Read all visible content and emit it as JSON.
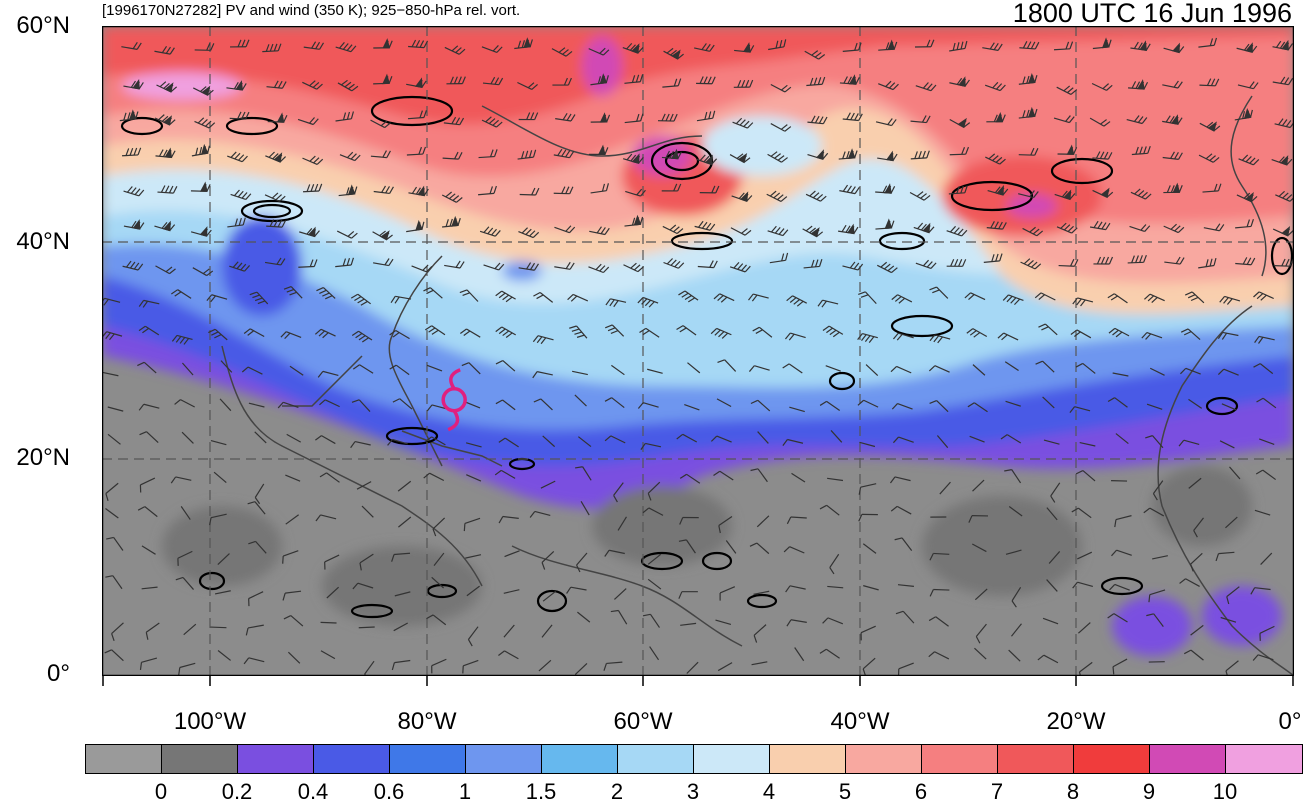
{
  "title": {
    "left": "[1996170N27282] PV and wind (350 K); 925−850-hPa rel. vort.",
    "right": "1800 UTC 16 Jun 1996"
  },
  "axes": {
    "lat_labels": [
      "60°N",
      "40°N",
      "20°N",
      "0°"
    ],
    "lon_labels": [
      "100°W",
      "80°W",
      "60°W",
      "40°W",
      "20°W",
      "0°"
    ]
  },
  "map": {
    "extent": {
      "lon_min": -110,
      "lon_max": 0,
      "lat_min": 0,
      "lat_max": 60
    },
    "grid_spacing_deg": 20,
    "storm_symbol": {
      "name": "tropical-cyclone-symbol",
      "lon": -77.5,
      "lat": 25.5,
      "color": "#e0207f"
    }
  },
  "colorbar": {
    "labels": [
      "0",
      "0.2",
      "0.4",
      "0.6",
      "1",
      "1.5",
      "2",
      "3",
      "4",
      "5",
      "6",
      "7",
      "8",
      "9",
      "10"
    ],
    "colors": [
      "#9a9a9a",
      "#767676",
      "#7a4fe0",
      "#4a5ae6",
      "#3f78e8",
      "#6e96ef",
      "#66b8ee",
      "#a6d8f5",
      "#cce8f8",
      "#f9cfae",
      "#f8a8a0",
      "#f57f80",
      "#f0585a",
      "#f03c3c",
      "#d14ab5",
      "#f0a0e0"
    ]
  }
}
